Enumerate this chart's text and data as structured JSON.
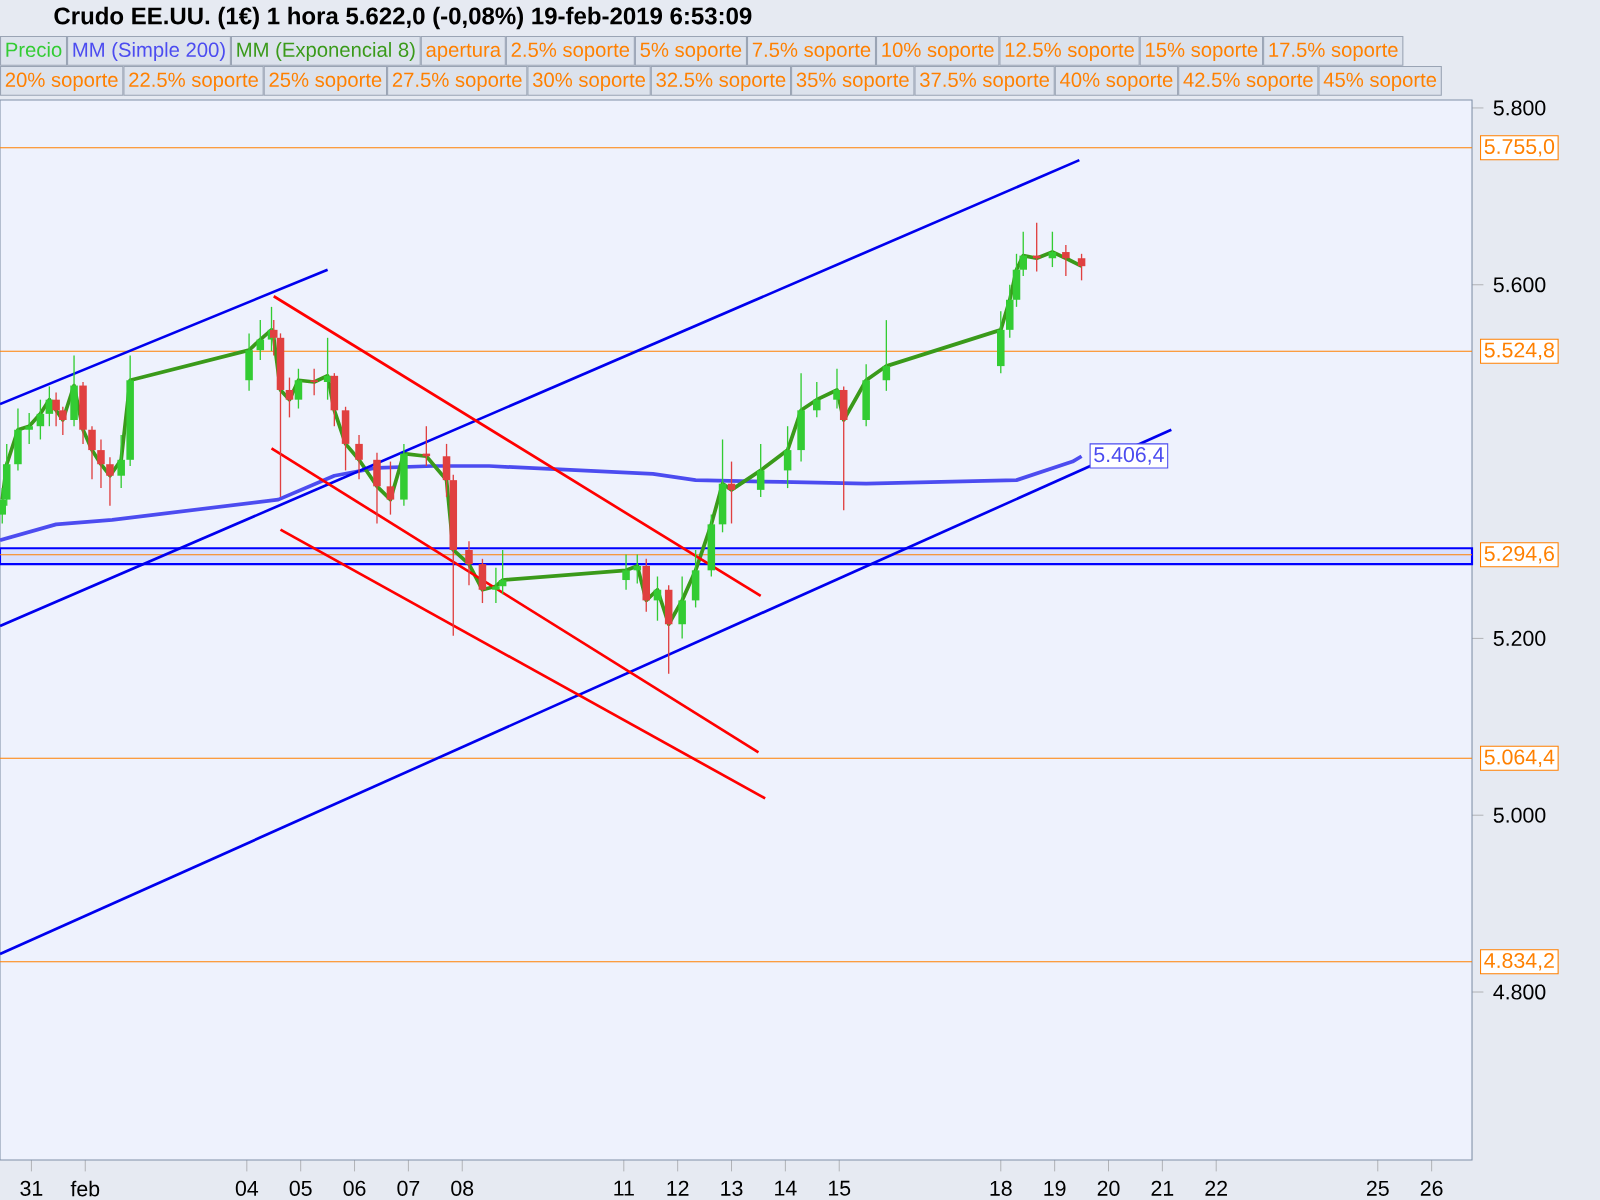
{
  "chart_data": {
    "type": "candlestick",
    "title": "Crudo EE.UU. (1€)   1 hora   5.622,0 (-0,08%)   19-feb-2019 6:53:09",
    "xlim": [
      "2019-01-30T10:00",
      "2019-02-26T18:00"
    ],
    "ylim": [
      4.61,
      5.809
    ],
    "xticks": [
      {
        "value": "2019-01-31",
        "label": "31"
      },
      {
        "value": "2019-02-01",
        "label": "feb"
      },
      {
        "value": "2019-02-04",
        "label": "04"
      },
      {
        "value": "2019-02-05",
        "label": "05"
      },
      {
        "value": "2019-02-06",
        "label": "06"
      },
      {
        "value": "2019-02-07",
        "label": "07"
      },
      {
        "value": "2019-02-08",
        "label": "08"
      },
      {
        "value": "2019-02-11",
        "label": "11"
      },
      {
        "value": "2019-02-12",
        "label": "12"
      },
      {
        "value": "2019-02-13",
        "label": "13"
      },
      {
        "value": "2019-02-14",
        "label": "14"
      },
      {
        "value": "2019-02-15",
        "label": "15"
      },
      {
        "value": "2019-02-18",
        "label": "18"
      },
      {
        "value": "2019-02-19",
        "label": "19"
      },
      {
        "value": "2019-02-20",
        "label": "20"
      },
      {
        "value": "2019-02-21",
        "label": "21"
      },
      {
        "value": "2019-02-22",
        "label": "22"
      },
      {
        "value": "2019-02-25",
        "label": "25"
      },
      {
        "value": "2019-02-26",
        "label": "26"
      }
    ],
    "yticks": [
      {
        "value": 4.8,
        "label": "4.800"
      },
      {
        "value": 5.0,
        "label": "5.000"
      },
      {
        "value": 5.2,
        "label": "5.200"
      },
      {
        "value": 5.6,
        "label": "5.600"
      },
      {
        "value": 5.8,
        "label": "5.800"
      }
    ],
    "legend": "top",
    "series": [
      {
        "name": "Precio",
        "x": [
          "2019-01-30T11:00",
          "2019-01-30T13:00",
          "2019-01-30T18:00",
          "2019-01-30T23:00",
          "2019-01-31T04:00",
          "2019-01-31T08:00",
          "2019-01-31T11:00",
          "2019-01-31T14:00",
          "2019-01-31T19:00",
          "2019-01-31T23:00",
          "2019-02-01T03:00",
          "2019-02-01T07:00",
          "2019-02-01T11:00",
          "2019-02-01T16:00",
          "2019-02-01T20:00",
          "2019-02-04T01:00",
          "2019-02-04T06:00",
          "2019-02-04T11:00",
          "2019-02-04T12:00",
          "2019-02-04T15:00",
          "2019-02-04T19:00",
          "2019-02-04T23:00",
          "2019-02-05T06:00",
          "2019-02-05T12:00",
          "2019-02-05T15:00",
          "2019-02-05T20:00",
          "2019-02-06T02:00",
          "2019-02-06T10:00",
          "2019-02-06T16:00",
          "2019-02-06T22:00",
          "2019-02-07T08:00",
          "2019-02-07T17:00",
          "2019-02-07T20:00",
          "2019-02-08T03:00",
          "2019-02-08T09:00",
          "2019-02-08T15:00",
          "2019-02-08T18:00",
          "2019-02-11T01:00",
          "2019-02-11T06:00",
          "2019-02-11T10:00",
          "2019-02-11T15:00",
          "2019-02-11T20:00",
          "2019-02-12T02:00",
          "2019-02-12T08:00",
          "2019-02-12T15:00",
          "2019-02-12T20:00",
          "2019-02-13T00:00",
          "2019-02-13T13:00",
          "2019-02-14T01:00",
          "2019-02-14T07:00",
          "2019-02-14T14:00",
          "2019-02-14T23:00",
          "2019-02-15T02:00",
          "2019-02-15T12:00",
          "2019-02-15T21:00",
          "2019-02-18T00:00",
          "2019-02-18T04:00",
          "2019-02-18T07:00",
          "2019-02-18T10:00",
          "2019-02-18T16:00",
          "2019-02-18T23:00",
          "2019-02-19T05:00",
          "2019-02-19T12:00"
        ],
        "ohlc": [
          [
            5.34,
            5.37,
            5.33,
            5.357
          ],
          [
            5.357,
            5.42,
            5.35,
            5.397
          ],
          [
            5.397,
            5.46,
            5.39,
            5.436
          ],
          [
            5.436,
            5.455,
            5.42,
            5.44
          ],
          [
            5.44,
            5.47,
            5.425,
            5.454
          ],
          [
            5.454,
            5.485,
            5.44,
            5.47
          ],
          [
            5.47,
            5.478,
            5.44,
            5.458
          ],
          [
            5.458,
            5.462,
            5.43,
            5.447
          ],
          [
            5.447,
            5.52,
            5.44,
            5.486
          ],
          [
            5.486,
            5.49,
            5.42,
            5.436
          ],
          [
            5.436,
            5.44,
            5.38,
            5.413
          ],
          [
            5.413,
            5.425,
            5.37,
            5.397
          ],
          [
            5.397,
            5.405,
            5.35,
            5.384
          ],
          [
            5.384,
            5.43,
            5.37,
            5.402
          ],
          [
            5.402,
            5.52,
            5.395,
            5.492
          ],
          [
            5.492,
            5.545,
            5.48,
            5.526
          ],
          [
            5.526,
            5.56,
            5.515,
            5.538
          ],
          [
            5.538,
            5.575,
            5.525,
            5.549
          ],
          [
            5.549,
            5.56,
            5.52,
            5.54
          ],
          [
            5.54,
            5.545,
            5.36,
            5.481
          ],
          [
            5.481,
            5.495,
            5.45,
            5.47
          ],
          [
            5.47,
            5.505,
            5.46,
            5.492
          ],
          [
            5.492,
            5.505,
            5.475,
            5.49
          ],
          [
            5.49,
            5.54,
            5.47,
            5.497
          ],
          [
            5.497,
            5.5,
            5.44,
            5.458
          ],
          [
            5.458,
            5.462,
            5.39,
            5.42
          ],
          [
            5.42,
            5.43,
            5.38,
            5.402
          ],
          [
            5.402,
            5.41,
            5.33,
            5.372
          ],
          [
            5.372,
            5.4,
            5.34,
            5.357
          ],
          [
            5.357,
            5.42,
            5.35,
            5.409
          ],
          [
            5.409,
            5.44,
            5.395,
            5.406
          ],
          [
            5.406,
            5.42,
            5.36,
            5.379
          ],
          [
            5.379,
            5.385,
            5.203,
            5.3
          ],
          [
            5.3,
            5.31,
            5.26,
            5.284
          ],
          [
            5.284,
            5.29,
            5.24,
            5.255
          ],
          [
            5.255,
            5.28,
            5.24,
            5.259
          ],
          [
            5.259,
            5.3,
            5.25,
            5.266
          ],
          [
            5.266,
            5.295,
            5.255,
            5.277
          ],
          [
            5.277,
            5.295,
            5.262,
            5.282
          ],
          [
            5.282,
            5.29,
            5.23,
            5.243
          ],
          [
            5.243,
            5.27,
            5.22,
            5.255
          ],
          [
            5.255,
            5.26,
            5.16,
            5.216
          ],
          [
            5.216,
            5.27,
            5.2,
            5.243
          ],
          [
            5.243,
            5.3,
            5.235,
            5.277
          ],
          [
            5.277,
            5.34,
            5.27,
            5.329
          ],
          [
            5.329,
            5.425,
            5.32,
            5.375
          ],
          [
            5.375,
            5.4,
            5.33,
            5.368
          ],
          [
            5.368,
            5.42,
            5.36,
            5.39
          ],
          [
            5.39,
            5.44,
            5.37,
            5.413
          ],
          [
            5.413,
            5.5,
            5.4,
            5.458
          ],
          [
            5.458,
            5.49,
            5.45,
            5.47
          ],
          [
            5.47,
            5.505,
            5.46,
            5.481
          ],
          [
            5.481,
            5.485,
            5.345,
            5.447
          ],
          [
            5.447,
            5.51,
            5.44,
            5.492
          ],
          [
            5.492,
            5.56,
            5.48,
            5.508
          ],
          [
            5.508,
            5.57,
            5.5,
            5.549
          ],
          [
            5.549,
            5.6,
            5.54,
            5.583
          ],
          [
            5.583,
            5.635,
            5.575,
            5.617
          ],
          [
            5.617,
            5.66,
            5.61,
            5.633
          ],
          [
            5.633,
            5.67,
            5.615,
            5.63
          ],
          [
            5.63,
            5.66,
            5.62,
            5.637
          ],
          [
            5.637,
            5.645,
            5.61,
            5.63
          ],
          [
            5.63,
            5.635,
            5.605,
            5.621
          ]
        ],
        "colors": [
          "#33cc33",
          "#33cc33",
          "#33cc33",
          "#33cc33",
          "#33cc33",
          "#33cc33",
          "#e04040",
          "#e04040",
          "#33cc33",
          "#e04040",
          "#e04040",
          "#e04040",
          "#e04040",
          "#33cc33",
          "#33cc33",
          "#33cc33",
          "#33cc33",
          "#33cc33",
          "#e04040",
          "#e04040",
          "#e04040",
          "#33cc33",
          "#e04040",
          "#33cc33",
          "#e04040",
          "#e04040",
          "#e04040",
          "#e04040",
          "#e04040",
          "#33cc33",
          "#e04040",
          "#e04040",
          "#e04040",
          "#e04040",
          "#e04040",
          "#33cc33",
          "#33cc33",
          "#33cc33",
          "#33cc33",
          "#e04040",
          "#33cc33",
          "#e04040",
          "#33cc33",
          "#33cc33",
          "#33cc33",
          "#33cc33",
          "#e04040",
          "#33cc33",
          "#33cc33",
          "#33cc33",
          "#33cc33",
          "#33cc33",
          "#e04040",
          "#33cc33",
          "#33cc33",
          "#33cc33",
          "#33cc33",
          "#33cc33",
          "#33cc33",
          "#e04040",
          "#33cc33",
          "#e04040",
          "#e04040"
        ]
      },
      {
        "name": "MM (Simple 200)",
        "type": "line",
        "color": "#4c4cf0",
        "x": [
          "2019-01-30T10:00",
          "2019-01-31T11:00",
          "2019-02-01T12:00",
          "2019-02-04T14:00",
          "2019-02-05T15:00",
          "2019-02-06T10:00",
          "2019-02-07T11:00",
          "2019-02-08T12:00",
          "2019-02-11T13:00",
          "2019-02-12T08:00",
          "2019-02-13T22:00",
          "2019-02-15T12:00",
          "2019-02-18T07:00",
          "2019-02-19T08:00",
          "2019-02-19T12:00"
        ],
        "values": [
          5.311,
          5.329,
          5.334,
          5.357,
          5.384,
          5.393,
          5.395,
          5.395,
          5.386,
          5.379,
          5.377,
          5.375,
          5.379,
          5.4,
          5.406
        ]
      },
      {
        "name": "MM (Exponencial 8)",
        "type": "line",
        "color": "#3a9a1a",
        "x": [
          "2019-01-30T11:00",
          "2019-01-30T13:00",
          "2019-01-30T18:00",
          "2019-01-30T23:00",
          "2019-01-31T04:00",
          "2019-01-31T08:00",
          "2019-01-31T11:00",
          "2019-01-31T14:00",
          "2019-01-31T19:00",
          "2019-01-31T23:00",
          "2019-02-01T03:00",
          "2019-02-01T07:00",
          "2019-02-01T11:00",
          "2019-02-01T16:00",
          "2019-02-01T20:00",
          "2019-02-04T01:00",
          "2019-02-04T06:00",
          "2019-02-04T11:00",
          "2019-02-04T12:00",
          "2019-02-04T15:00",
          "2019-02-04T19:00",
          "2019-02-04T23:00",
          "2019-02-05T06:00",
          "2019-02-05T12:00",
          "2019-02-05T15:00",
          "2019-02-05T20:00",
          "2019-02-06T02:00",
          "2019-02-06T10:00",
          "2019-02-06T16:00",
          "2019-02-06T22:00",
          "2019-02-07T08:00",
          "2019-02-07T17:00",
          "2019-02-07T20:00",
          "2019-02-08T03:00",
          "2019-02-08T09:00",
          "2019-02-08T15:00",
          "2019-02-08T18:00",
          "2019-02-11T01:00",
          "2019-02-11T06:00",
          "2019-02-11T10:00",
          "2019-02-11T15:00",
          "2019-02-11T20:00",
          "2019-02-12T02:00",
          "2019-02-12T08:00",
          "2019-02-12T15:00",
          "2019-02-12T20:00",
          "2019-02-13T00:00",
          "2019-02-13T13:00",
          "2019-02-14T01:00",
          "2019-02-14T07:00",
          "2019-02-14T14:00",
          "2019-02-14T23:00",
          "2019-02-15T02:00",
          "2019-02-15T12:00",
          "2019-02-15T21:00",
          "2019-02-18T00:00",
          "2019-02-18T04:00",
          "2019-02-18T07:00",
          "2019-02-18T10:00",
          "2019-02-18T16:00",
          "2019-02-18T23:00",
          "2019-02-19T05:00",
          "2019-02-19T12:00"
        ],
        "values": [
          5.357,
          5.397,
          5.436,
          5.44,
          5.454,
          5.47,
          5.458,
          5.447,
          5.486,
          5.436,
          5.413,
          5.397,
          5.384,
          5.402,
          5.492,
          5.526,
          5.538,
          5.549,
          5.54,
          5.481,
          5.47,
          5.492,
          5.49,
          5.497,
          5.458,
          5.42,
          5.402,
          5.372,
          5.357,
          5.409,
          5.406,
          5.379,
          5.3,
          5.284,
          5.255,
          5.259,
          5.266,
          5.277,
          5.282,
          5.243,
          5.255,
          5.216,
          5.243,
          5.277,
          5.329,
          5.375,
          5.368,
          5.39,
          5.413,
          5.458,
          5.47,
          5.481,
          5.447,
          5.492,
          5.508,
          5.549,
          5.583,
          5.617,
          5.633,
          5.63,
          5.637,
          5.63,
          5.621
        ]
      },
      {
        "type": "line",
        "color": "#0000ee",
        "x": [
          "2019-01-30T10:00",
          "2019-02-05T12:00"
        ],
        "values": [
          5.465,
          5.617
        ]
      },
      {
        "type": "line",
        "color": "#0000ee",
        "x": [
          "2019-01-30T10:00",
          "2019-02-19T11:00"
        ],
        "values": [
          5.214,
          5.741
        ]
      },
      {
        "type": "line",
        "color": "#0000ee",
        "x": [
          "2019-01-30T10:00",
          "2019-02-21T04:00"
        ],
        "values": [
          4.843,
          5.436
        ]
      },
      {
        "type": "line",
        "color": "#ff0000",
        "x": [
          "2019-02-04T12:00",
          "2019-02-13T13:00"
        ],
        "values": [
          5.587,
          5.248
        ]
      },
      {
        "type": "line",
        "color": "#ff0000",
        "x": [
          "2019-02-04T11:00",
          "2019-02-13T12:00"
        ],
        "values": [
          5.415,
          5.071
        ]
      },
      {
        "type": "line",
        "color": "#ff0000",
        "x": [
          "2019-02-04T15:00",
          "2019-02-13T15:00"
        ],
        "values": [
          5.323,
          5.019
        ]
      }
    ],
    "ref_lines": [
      {
        "axis": "y",
        "value": 5.755,
        "label": "5.755,0",
        "color": "#ff8000"
      },
      {
        "axis": "y",
        "value": 5.5248,
        "label": "5.524,8",
        "color": "#ff8000"
      },
      {
        "axis": "y",
        "value": 5.2946,
        "label": "5.294,6",
        "color": "#ff8000"
      },
      {
        "axis": "y",
        "value": 5.0644,
        "label": "5.064,4",
        "color": "#ff8000"
      },
      {
        "axis": "y",
        "value": 4.8342,
        "label": "4.834,2",
        "color": "#ff8000"
      }
    ],
    "bands": [
      {
        "axis": "y",
        "from": 5.284,
        "to": 5.302,
        "color": "#0000ff"
      }
    ],
    "annotations": [
      {
        "text": "5.406,4",
        "x": "2019-02-19T12:00",
        "y": 5.4064
      },
      "apertura",
      "2.5% soporte",
      "5% soporte",
      "7.5% soporte",
      "10% soporte",
      "12.5% soporte",
      "15% soporte",
      "17.5% soporte",
      "20% soporte",
      "22.5% soporte",
      "25% soporte",
      "27.5% soporte",
      "30% soporte",
      "32.5% soporte",
      "35% soporte",
      "37.5% soporte",
      "40% soporte",
      "42.5% soporte",
      "45% soporte"
    ]
  }
}
